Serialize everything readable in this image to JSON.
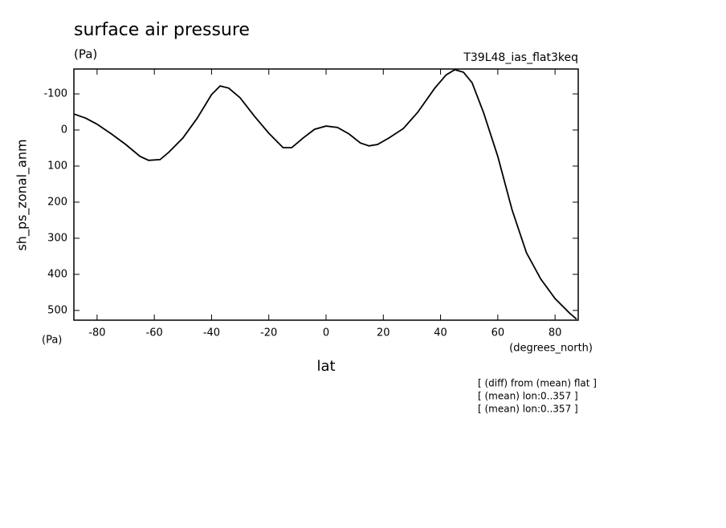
{
  "chart_data": {
    "type": "line",
    "title": "surface air pressure",
    "subtitle": "(Pa)",
    "run_label": "T39L48_ias_flat3keq",
    "y_label": "sh_ps_zonal_anm",
    "y_units": "(Pa)",
    "x_units": "(degrees_north)",
    "x_label": "lat",
    "annotations": [
      "[ (diff) from (mean) flat ]",
      "[ (mean) lon:0..357 ]",
      "[ (mean) lon:0..357 ]"
    ],
    "x": [
      -88,
      -84,
      -80,
      -75,
      -70,
      -65,
      -62,
      -58,
      -55,
      -50,
      -45,
      -40,
      -37,
      -34,
      -30,
      -25,
      -20,
      -15,
      -12,
      -8,
      -4,
      0,
      4,
      8,
      12,
      15,
      18,
      22,
      27,
      32,
      38,
      42,
      45,
      48,
      51,
      55,
      60,
      65,
      70,
      75,
      80,
      85,
      87.5
    ],
    "series": [
      {
        "color": "#000000",
        "values": [
          -44,
          -33,
          -16,
          11,
          40,
          73,
          84,
          82,
          62,
          22,
          -33,
          -98,
          -122,
          -116,
          -89,
          -38,
          9,
          49,
          49,
          22,
          -2,
          -11,
          -7,
          11,
          36,
          44,
          40,
          22,
          -4,
          -49,
          -116,
          -153,
          -167,
          -160,
          -131,
          -49,
          73,
          222,
          340,
          413,
          467,
          507,
          524
        ]
      }
    ],
    "xlim": [
      -88.1,
      88.1
    ],
    "ylim": [
      527,
      -169
    ],
    "xticks": [
      -80,
      -60,
      -40,
      -20,
      0,
      20,
      40,
      60,
      80
    ],
    "yticks": [
      -100,
      0,
      100,
      200,
      300,
      400,
      500
    ]
  }
}
